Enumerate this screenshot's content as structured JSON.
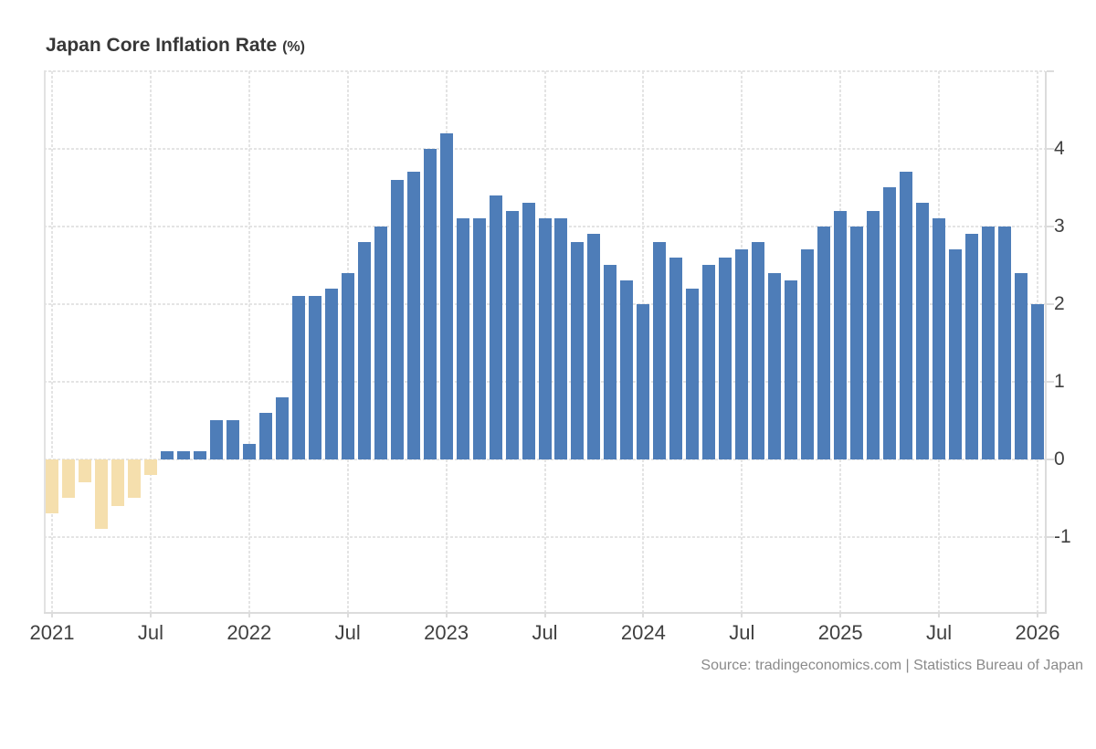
{
  "header": {
    "title": "Japan Core Inflation Rate",
    "title_suffix": "(%)"
  },
  "footer": {
    "source": "Source: tradingeconomics.com | Statistics Bureau of Japan"
  },
  "chart_data": {
    "type": "bar",
    "title": "Japan Core Inflation Rate (%)",
    "xlabel": "",
    "ylabel": "",
    "grid": true,
    "ylim": [
      -1.965,
      5
    ],
    "colors": {
      "positive": "#4e7db8",
      "negative": "#f5dfad"
    },
    "y_axis": {
      "side": "right",
      "grid_values": [
        5,
        4,
        3,
        2,
        1,
        0,
        -1
      ],
      "ticks": [
        {
          "value": 4,
          "label": "4"
        },
        {
          "value": 3,
          "label": "3"
        },
        {
          "value": 2,
          "label": "2"
        },
        {
          "value": 1,
          "label": "1"
        },
        {
          "value": 0,
          "label": "0"
        },
        {
          "value": -1,
          "label": "-1"
        }
      ]
    },
    "x_axis": {
      "ticks": [
        {
          "month_index": 0,
          "label": "2021"
        },
        {
          "month_index": 6,
          "label": "Jul"
        },
        {
          "month_index": 12,
          "label": "2022"
        },
        {
          "month_index": 18,
          "label": "Jul"
        },
        {
          "month_index": 24,
          "label": "2023"
        },
        {
          "month_index": 30,
          "label": "Jul"
        },
        {
          "month_index": 36,
          "label": "2024"
        },
        {
          "month_index": 42,
          "label": "Jul"
        },
        {
          "month_index": 48,
          "label": "2025"
        },
        {
          "month_index": 54,
          "label": "Jul"
        },
        {
          "month_index": 60,
          "label": "2026"
        }
      ]
    },
    "months": [
      "Jan 2021",
      "Feb 2021",
      "Mar 2021",
      "Apr 2021",
      "May 2021",
      "Jun 2021",
      "Jul 2021",
      "Aug 2021",
      "Sep 2021",
      "Oct 2021",
      "Nov 2021",
      "Dec 2021",
      "Jan 2022",
      "Feb 2022",
      "Mar 2022",
      "Apr 2022",
      "May 2022",
      "Jun 2022",
      "Jul 2022",
      "Aug 2022",
      "Sep 2022",
      "Oct 2022",
      "Nov 2022",
      "Dec 2022",
      "Jan 2023",
      "Feb 2023",
      "Mar 2023",
      "Apr 2023",
      "May 2023",
      "Jun 2023",
      "Jul 2023",
      "Aug 2023",
      "Sep 2023",
      "Oct 2023",
      "Nov 2023",
      "Dec 2023",
      "Jan 2024",
      "Feb 2024",
      "Mar 2024",
      "Apr 2024",
      "May 2024",
      "Jun 2024",
      "Jul 2024",
      "Aug 2024",
      "Sep 2024",
      "Oct 2024",
      "Nov 2024",
      "Dec 2024",
      "Jan 2025",
      "Feb 2025",
      "Mar 2025",
      "Apr 2025",
      "May 2025",
      "Jun 2025",
      "Jul 2025",
      "Aug 2025",
      "Sep 2025",
      "Oct 2025",
      "Nov 2025",
      "Dec 2025",
      "Jan 2026"
    ],
    "values": [
      -0.7,
      -0.5,
      -0.3,
      -0.9,
      -0.6,
      -0.5,
      -0.2,
      0.1,
      0.1,
      0.1,
      0.5,
      0.5,
      0.2,
      0.6,
      0.8,
      2.1,
      2.1,
      2.2,
      2.4,
      2.8,
      3.0,
      3.6,
      3.7,
      4.0,
      4.2,
      3.1,
      3.1,
      3.4,
      3.2,
      3.3,
      3.1,
      3.1,
      2.8,
      2.9,
      2.5,
      2.3,
      2.0,
      2.8,
      2.6,
      2.2,
      2.5,
      2.6,
      2.7,
      2.8,
      2.4,
      2.3,
      2.7,
      3.0,
      3.2,
      3.0,
      3.2,
      3.5,
      3.7,
      3.3,
      3.1,
      2.7,
      2.9,
      3.0,
      3.0,
      2.4,
      2.0
    ]
  }
}
